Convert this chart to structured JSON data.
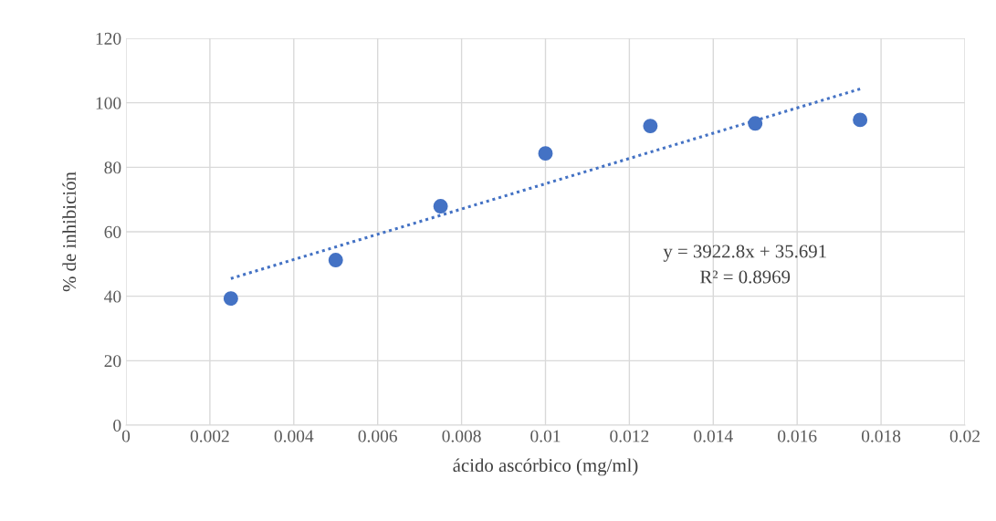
{
  "chart_data": {
    "type": "scatter",
    "xlabel": "ácido ascórbico (mg/ml)",
    "ylabel": "% de inhibición",
    "series": [
      {
        "type": "scatter",
        "color": "#4472c4",
        "marker": "circle",
        "x": [
          0.0025,
          0.005,
          0.0075,
          0.01,
          0.0125,
          0.015,
          0.0175
        ],
        "values": [
          39.3,
          51.2,
          67.9,
          84.3,
          92.8,
          93.6,
          94.7
        ]
      },
      {
        "type": "line",
        "color": "#4472c4",
        "line_style": "dotted",
        "marker": "none",
        "x": [
          0.0025,
          0.0175
        ],
        "values": [
          45.5,
          104.3
        ]
      }
    ],
    "annotations": [
      "y = 3922.8x + 35.691",
      "R² = 0.8969"
    ],
    "xlim": [
      0,
      0.02
    ],
    "xticks": [
      0,
      0.002,
      0.004,
      0.006,
      0.008,
      0.01,
      0.012,
      0.014,
      0.016,
      0.018,
      0.02
    ],
    "ylim": [
      0,
      120
    ],
    "yticks": [
      0,
      20,
      40,
      60,
      80,
      100,
      120
    ],
    "grid": true
  }
}
